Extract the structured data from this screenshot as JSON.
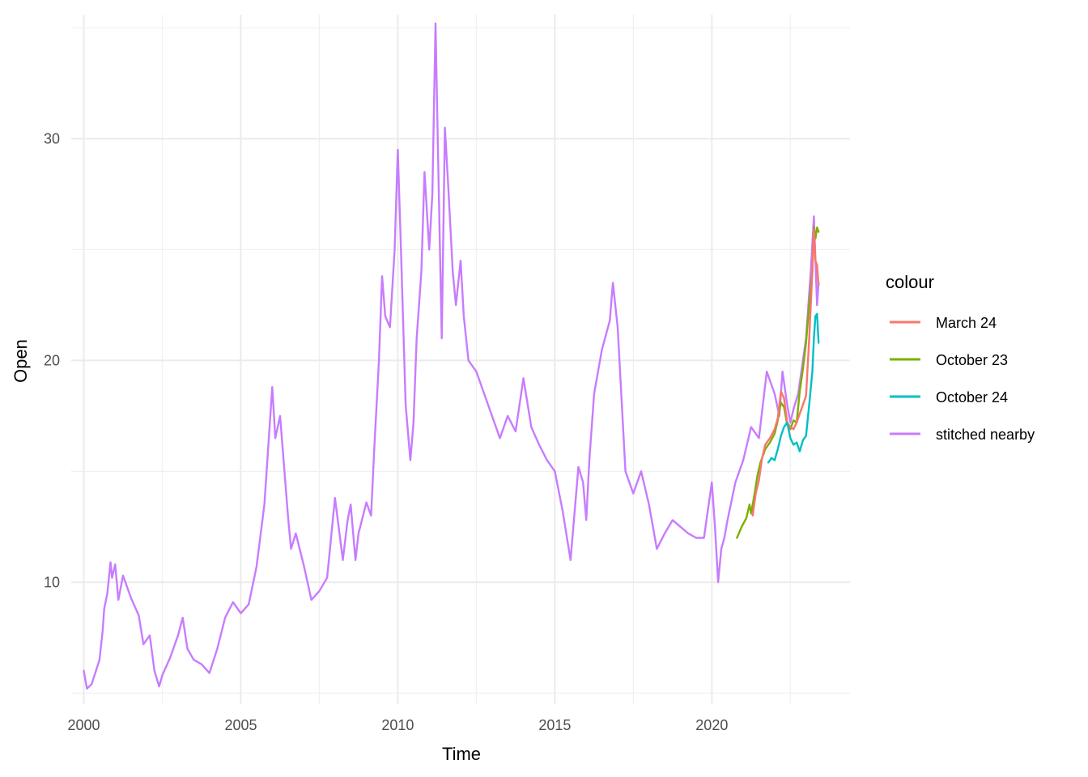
{
  "chart_data": {
    "type": "line",
    "xlabel": "Time",
    "ylabel": "Open",
    "xlim": [
      1999.6,
      2024.4
    ],
    "ylim": [
      4.5,
      35.6
    ],
    "x_ticks": [
      2000,
      2005,
      2010,
      2015,
      2020
    ],
    "x_tick_labels": [
      "2000",
      "2005",
      "2010",
      "2015",
      "2020"
    ],
    "y_ticks": [
      10,
      20,
      30
    ],
    "y_tick_labels": [
      "10",
      "20",
      "30"
    ],
    "grid": true,
    "legend": {
      "title": "colour",
      "position": "right",
      "entries": [
        "March 24",
        "October 23",
        "October 24",
        "stitched nearby"
      ]
    },
    "series": [
      {
        "name": "stitched nearby",
        "color": "#C77CFF",
        "x": [
          2000.0,
          2000.1,
          2000.25,
          2000.5,
          2000.6,
          2000.65,
          2000.75,
          2000.85,
          2000.9,
          2001.0,
          2001.1,
          2001.25,
          2001.5,
          2001.75,
          2001.9,
          2002.1,
          2002.25,
          2002.4,
          2002.5,
          2002.75,
          2003.0,
          2003.15,
          2003.3,
          2003.5,
          2003.75,
          2004.0,
          2004.25,
          2004.5,
          2004.75,
          2005.0,
          2005.25,
          2005.5,
          2005.75,
          2006.0,
          2006.1,
          2006.25,
          2006.5,
          2006.6,
          2006.75,
          2007.0,
          2007.25,
          2007.5,
          2007.75,
          2008.0,
          2008.25,
          2008.4,
          2008.5,
          2008.65,
          2008.75,
          2009.0,
          2009.15,
          2009.25,
          2009.4,
          2009.5,
          2009.6,
          2009.75,
          2009.9,
          2010.0,
          2010.1,
          2010.25,
          2010.4,
          2010.5,
          2010.6,
          2010.75,
          2010.85,
          2011.0,
          2011.1,
          2011.2,
          2011.3,
          2011.4,
          2011.5,
          2011.6,
          2011.75,
          2011.85,
          2012.0,
          2012.1,
          2012.25,
          2012.5,
          2012.75,
          2013.0,
          2013.25,
          2013.5,
          2013.75,
          2014.0,
          2014.25,
          2014.5,
          2014.75,
          2015.0,
          2015.25,
          2015.5,
          2015.75,
          2015.9,
          2016.0,
          2016.1,
          2016.25,
          2016.5,
          2016.75,
          2016.85,
          2017.0,
          2017.25,
          2017.5,
          2017.75,
          2018.0,
          2018.25,
          2018.5,
          2018.75,
          2019.0,
          2019.25,
          2019.5,
          2019.75,
          2020.0,
          2020.1,
          2020.2,
          2020.3,
          2020.4,
          2020.5,
          2020.75,
          2021.0,
          2021.25,
          2021.5,
          2021.75,
          2022.0,
          2022.15,
          2022.25,
          2022.4,
          2022.5,
          2022.6,
          2022.75,
          2023.0,
          2023.15,
          2023.25,
          2023.35,
          2023.4
        ],
        "y": [
          6.0,
          5.2,
          5.4,
          6.5,
          7.8,
          8.8,
          9.5,
          10.9,
          10.2,
          10.8,
          9.2,
          10.3,
          9.3,
          8.5,
          7.2,
          7.6,
          6.0,
          5.3,
          5.8,
          6.6,
          7.6,
          8.4,
          7.0,
          6.5,
          6.3,
          5.9,
          7.0,
          8.4,
          9.1,
          8.6,
          9.0,
          10.7,
          13.5,
          18.8,
          16.5,
          17.5,
          13.0,
          11.5,
          12.2,
          10.8,
          9.2,
          9.6,
          10.2,
          13.8,
          11.0,
          12.8,
          13.5,
          11.0,
          12.2,
          13.6,
          13.0,
          16.0,
          20.0,
          23.8,
          22.0,
          21.5,
          25.0,
          29.5,
          25.0,
          18.0,
          15.5,
          17.2,
          21.0,
          24.0,
          28.5,
          25.0,
          27.5,
          35.2,
          28.0,
          21.0,
          30.5,
          28.0,
          24.0,
          22.5,
          24.5,
          22.0,
          20.0,
          19.5,
          18.5,
          17.5,
          16.5,
          17.5,
          16.8,
          19.2,
          17.0,
          16.2,
          15.5,
          15.0,
          13.2,
          11.0,
          15.2,
          14.5,
          12.8,
          15.5,
          18.5,
          20.5,
          21.8,
          23.5,
          21.5,
          15.0,
          14.0,
          15.0,
          13.5,
          11.5,
          12.2,
          12.8,
          12.5,
          12.2,
          12.0,
          12.0,
          14.5,
          12.5,
          10.0,
          11.5,
          12.0,
          12.8,
          14.5,
          15.5,
          17.0,
          16.5,
          19.5,
          18.5,
          17.5,
          19.5,
          18.0,
          17.2,
          17.8,
          18.5,
          21.0,
          24.0,
          26.5,
          22.5,
          23.5
        ]
      },
      {
        "name": "October 23",
        "color": "#7CAE00",
        "x": [
          2020.8,
          2020.95,
          2021.1,
          2021.2,
          2021.25,
          2021.35,
          2021.45,
          2021.55,
          2021.7,
          2021.85,
          2022.0,
          2022.1,
          2022.2,
          2022.3,
          2022.4,
          2022.5,
          2022.6,
          2022.7,
          2022.8,
          2022.9,
          2023.0,
          2023.1,
          2023.2,
          2023.25,
          2023.3,
          2023.35,
          2023.4
        ],
        "y": [
          12.0,
          12.5,
          12.9,
          13.5,
          13.1,
          13.9,
          14.8,
          15.4,
          16.0,
          16.3,
          16.7,
          17.3,
          18.1,
          17.9,
          17.1,
          16.9,
          17.3,
          17.2,
          18.6,
          19.6,
          20.8,
          22.5,
          24.0,
          26.0,
          25.5,
          26.0,
          25.8
        ]
      },
      {
        "name": "March 24",
        "color": "#F8766D",
        "x": [
          2021.3,
          2021.4,
          2021.5,
          2021.6,
          2021.7,
          2021.85,
          2022.0,
          2022.1,
          2022.2,
          2022.3,
          2022.4,
          2022.5,
          2022.6,
          2022.7,
          2022.8,
          2022.9,
          2023.0,
          2023.1,
          2023.2,
          2023.25,
          2023.3,
          2023.35,
          2023.4
        ],
        "y": [
          13.0,
          14.0,
          14.6,
          15.6,
          16.2,
          16.5,
          16.9,
          17.4,
          18.6,
          18.3,
          17.2,
          17.0,
          16.9,
          17.2,
          17.6,
          18.0,
          18.4,
          21.0,
          24.0,
          25.9,
          24.5,
          24.3,
          23.4
        ]
      },
      {
        "name": "October 24",
        "color": "#00BFC4",
        "x": [
          2021.8,
          2021.9,
          2022.0,
          2022.1,
          2022.2,
          2022.3,
          2022.4,
          2022.5,
          2022.6,
          2022.7,
          2022.8,
          2022.9,
          2023.0,
          2023.1,
          2023.2,
          2023.25,
          2023.3,
          2023.35,
          2023.4
        ],
        "y": [
          15.4,
          15.6,
          15.5,
          16.0,
          16.6,
          17.0,
          17.2,
          16.5,
          16.2,
          16.3,
          15.9,
          16.4,
          16.6,
          18.0,
          19.5,
          21.0,
          22.0,
          22.1,
          20.8
        ]
      }
    ]
  }
}
